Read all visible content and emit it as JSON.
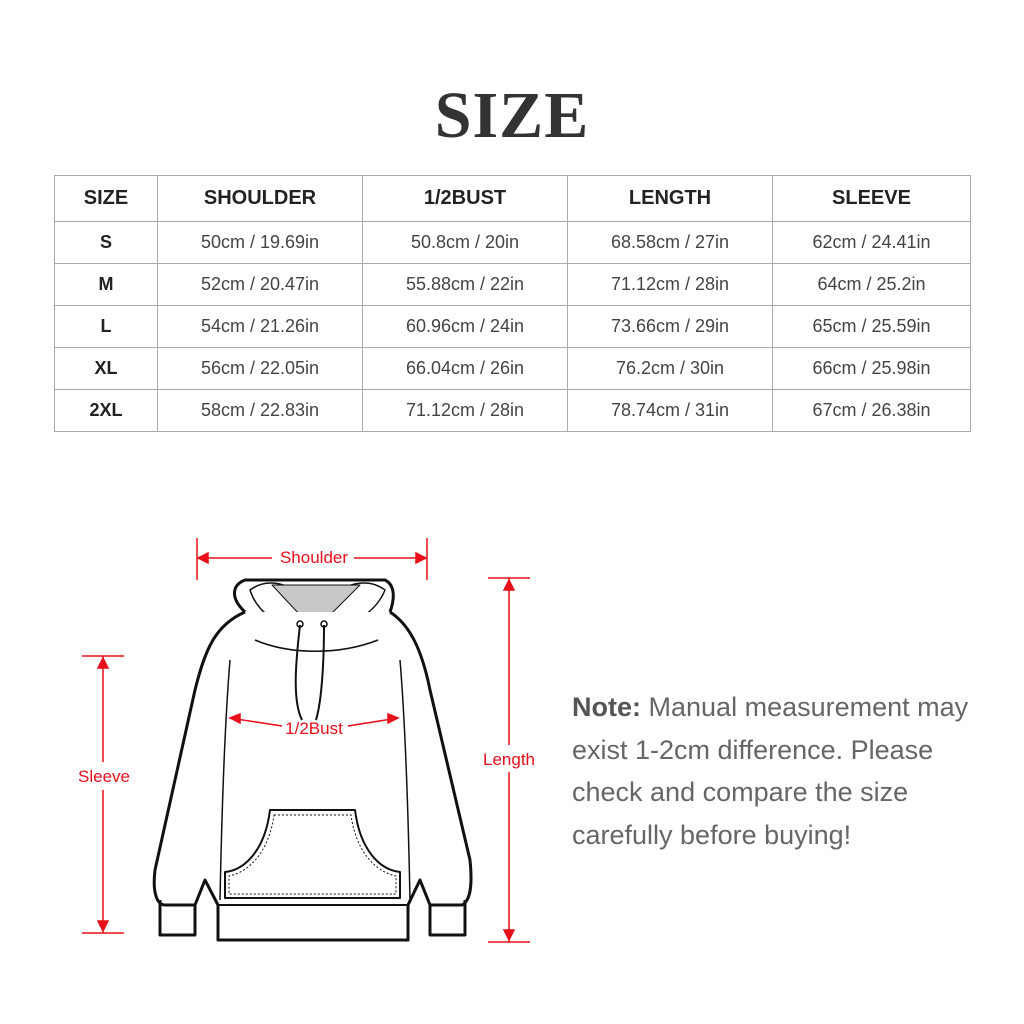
{
  "title": "SIZE",
  "table": {
    "headers": [
      "SIZE",
      "SHOULDER",
      "1/2BUST",
      "LENGTH",
      "SLEEVE"
    ],
    "rows": [
      [
        "S",
        "50cm / 19.69in",
        "50.8cm / 20in",
        "68.58cm / 27in",
        "62cm / 24.41in"
      ],
      [
        "M",
        "52cm / 20.47in",
        "55.88cm / 22in",
        "71.12cm / 28in",
        "64cm / 25.2in"
      ],
      [
        "L",
        "54cm / 21.26in",
        "60.96cm / 24in",
        "73.66cm / 29in",
        "65cm / 25.59in"
      ],
      [
        "XL",
        "56cm / 22.05in",
        "66.04cm / 26in",
        "76.2cm / 30in",
        "66cm / 25.98in"
      ],
      [
        "2XL",
        "58cm / 22.83in",
        "71.12cm / 28in",
        "78.74cm / 31in",
        "67cm / 26.38in"
      ]
    ]
  },
  "diagram": {
    "shoulder": "Shoulder",
    "bust": "1/2Bust",
    "length": "Length",
    "sleeve": "Sleeve",
    "accent": "#e8101a"
  },
  "note": {
    "label": "Note:",
    "text": "Manual measurement may exist 1-2cm difference. Please check and compare the size carefully before buying!"
  }
}
